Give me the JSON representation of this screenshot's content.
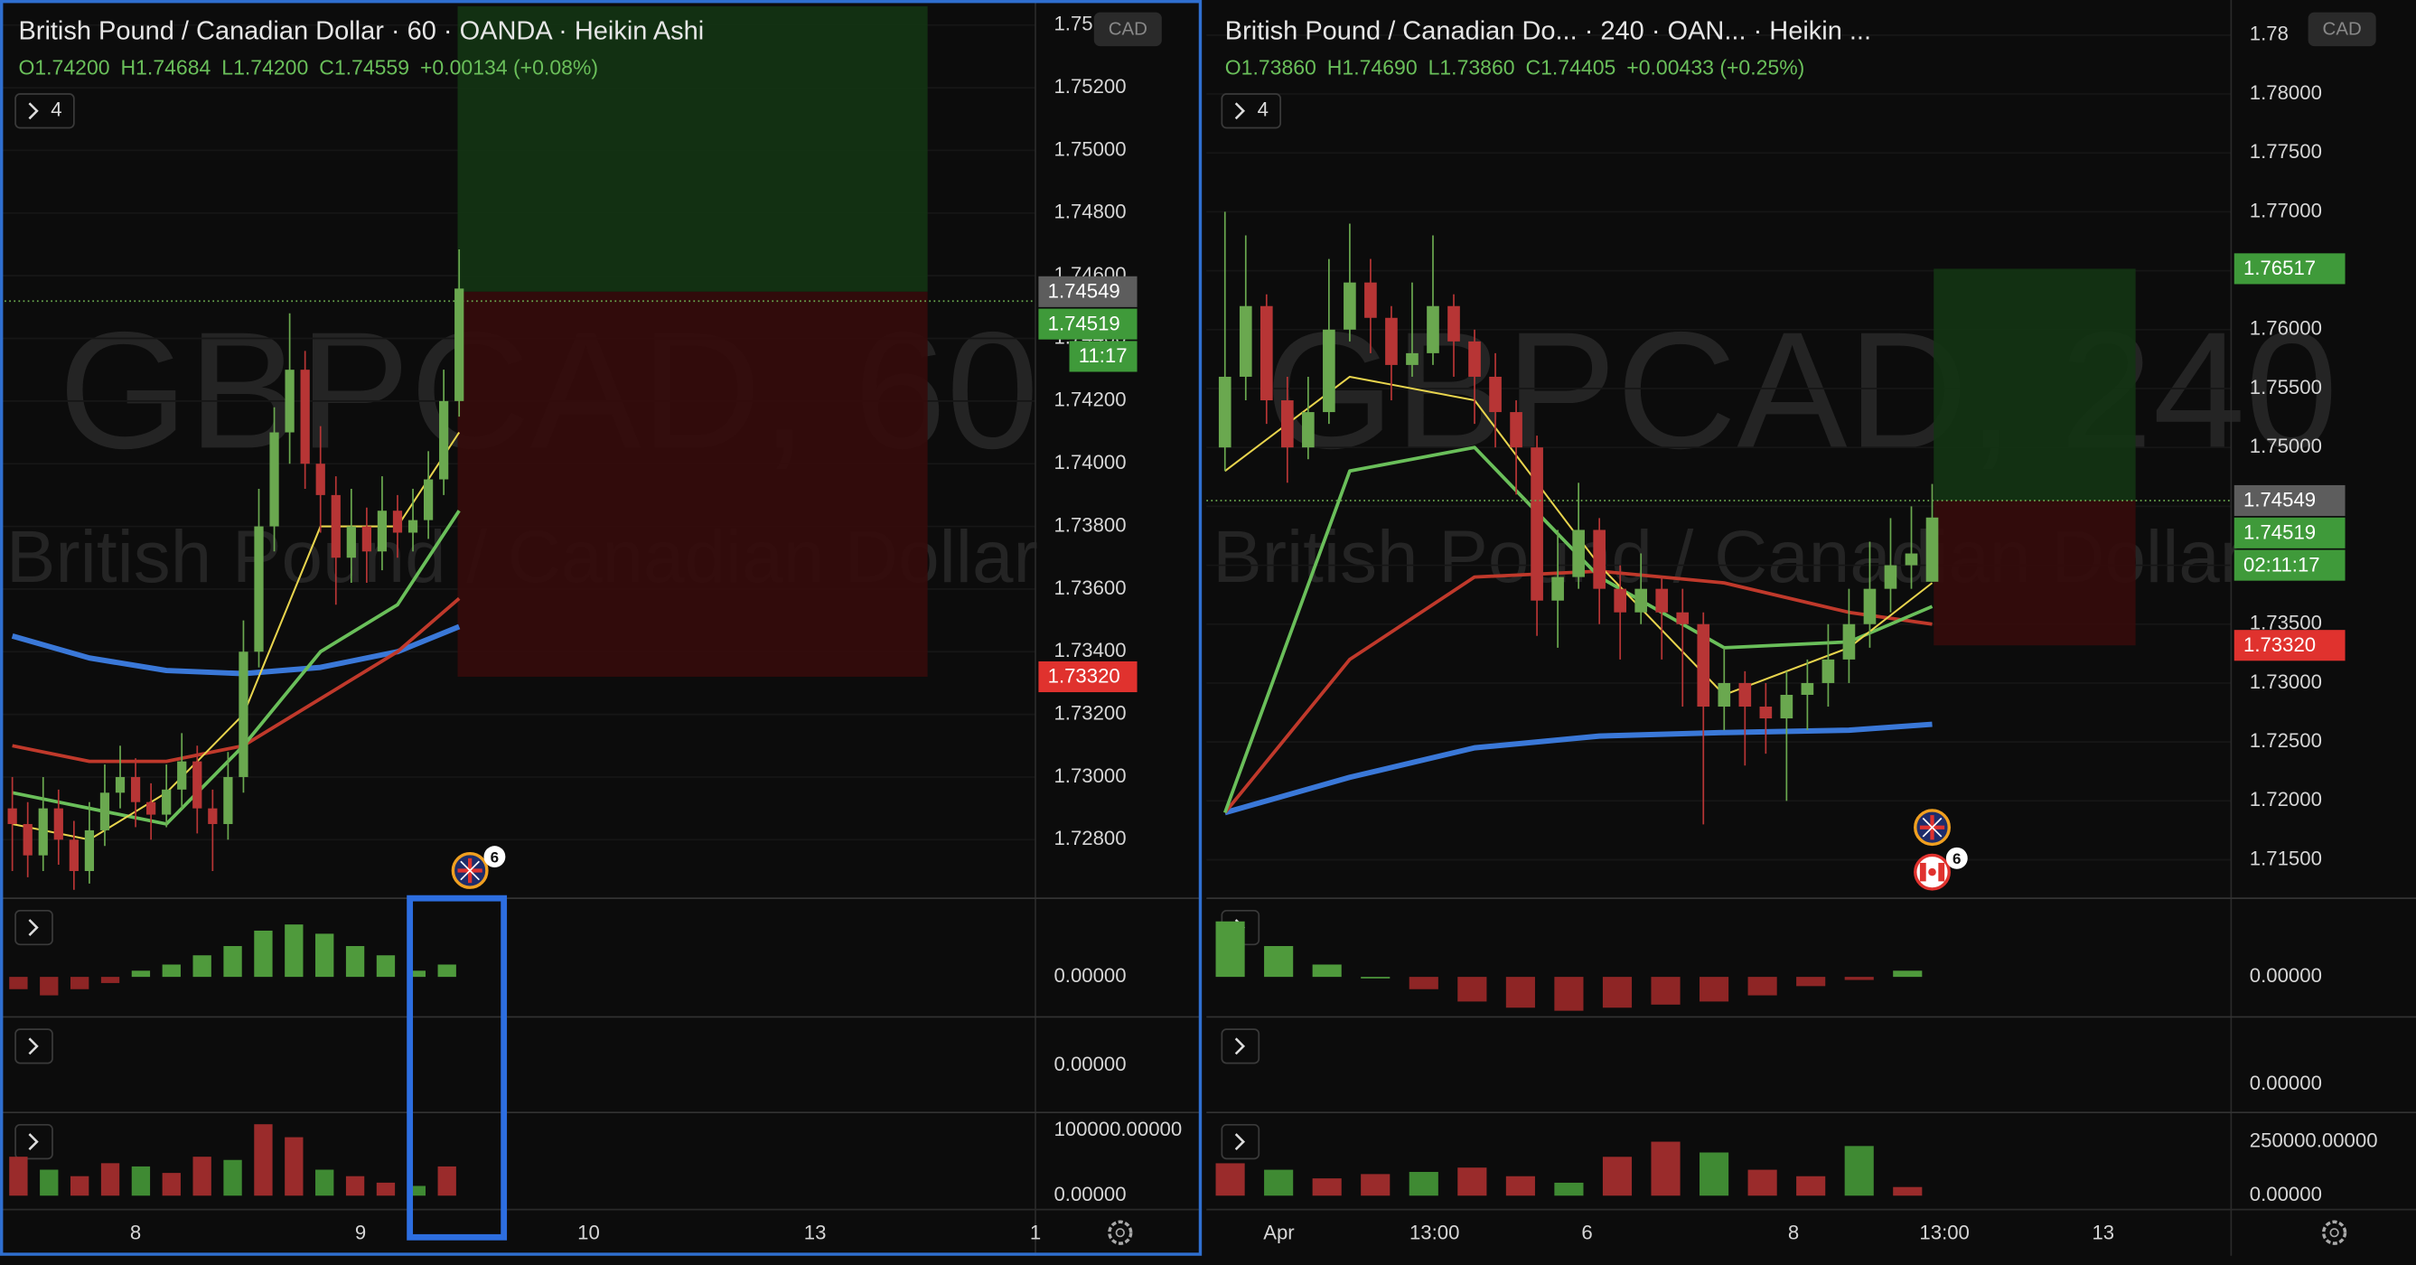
{
  "panes": [
    {
      "title": "British Pound / Canadian Dollar · 60 · OANDA · Heikin Ashi",
      "ohlc": [
        "O1.74200",
        "H1.74684",
        "L1.74200",
        "C1.74559",
        "+0.00134 (+0.08%)"
      ],
      "indicators_count": "4",
      "currency": "CAD",
      "watermark_symbol": "GBPCAD, 60",
      "watermark_name": "British Pound / Canadian Dollar",
      "ylim": [
        1.72613,
        1.7548
      ],
      "yticks": [
        {
          "value": 1.728,
          "label": "1.72800"
        },
        {
          "value": 1.73,
          "label": "1.73000"
        },
        {
          "value": 1.732,
          "label": "1.73200"
        },
        {
          "value": 1.734,
          "label": "1.73400"
        },
        {
          "value": 1.736,
          "label": "1.73600"
        },
        {
          "value": 1.738,
          "label": "1.73800"
        },
        {
          "value": 1.74,
          "label": "1.74000"
        },
        {
          "value": 1.742,
          "label": "1.74200"
        },
        {
          "value": 1.744,
          "label": "1.74400"
        },
        {
          "value": 1.746,
          "label": "1.74600"
        },
        {
          "value": 1.748,
          "label": "1.74800"
        },
        {
          "value": 1.75,
          "label": "1.75000"
        },
        {
          "value": 1.752,
          "label": "1.75200"
        },
        {
          "value": 1.754,
          "label": "1.75"
        }
      ],
      "price_labels": [
        {
          "value": 1.74549,
          "label": "1.74549",
          "color": "#5d5d5d"
        },
        {
          "value": 1.74519,
          "label": "1.74519",
          "color": "#3f9a3a",
          "countdown": "11:17"
        },
        {
          "value": 1.7332,
          "label": "1.73320",
          "color": "#e0322e"
        }
      ],
      "position": {
        "target": 1.7546,
        "entry": 1.74549,
        "stop": 1.7332
      },
      "time_labels": [
        "8",
        "9",
        "10",
        "13",
        "1"
      ],
      "event_badge": "6",
      "candles": [
        [
          1.729,
          1.73,
          1.727,
          1.7285
        ],
        [
          1.7285,
          1.7292,
          1.7268,
          1.7275
        ],
        [
          1.7275,
          1.73,
          1.727,
          1.729
        ],
        [
          1.729,
          1.7296,
          1.7272,
          1.728
        ],
        [
          1.728,
          1.7286,
          1.7264,
          1.727
        ],
        [
          1.727,
          1.7292,
          1.7266,
          1.7283
        ],
        [
          1.7283,
          1.7304,
          1.7278,
          1.7295
        ],
        [
          1.7295,
          1.731,
          1.729,
          1.73
        ],
        [
          1.73,
          1.7306,
          1.7284,
          1.7292
        ],
        [
          1.7292,
          1.7298,
          1.728,
          1.7288
        ],
        [
          1.7288,
          1.7304,
          1.7284,
          1.7296
        ],
        [
          1.7296,
          1.7314,
          1.729,
          1.7305
        ],
        [
          1.7305,
          1.731,
          1.7282,
          1.729
        ],
        [
          1.729,
          1.7296,
          1.727,
          1.7285
        ],
        [
          1.7285,
          1.7308,
          1.728,
          1.73
        ],
        [
          1.73,
          1.735,
          1.7295,
          1.734
        ],
        [
          1.734,
          1.7392,
          1.7335,
          1.738
        ],
        [
          1.738,
          1.7418,
          1.7372,
          1.741
        ],
        [
          1.741,
          1.7448,
          1.74,
          1.743
        ],
        [
          1.743,
          1.7436,
          1.7392,
          1.74
        ],
        [
          1.74,
          1.7412,
          1.7378,
          1.739
        ],
        [
          1.739,
          1.7396,
          1.7355,
          1.737
        ],
        [
          1.737,
          1.7392,
          1.7362,
          1.738
        ],
        [
          1.738,
          1.7386,
          1.7362,
          1.7372
        ],
        [
          1.7372,
          1.7396,
          1.7366,
          1.7385
        ],
        [
          1.7385,
          1.739,
          1.737,
          1.7378
        ],
        [
          1.7378,
          1.7392,
          1.7372,
          1.7382
        ],
        [
          1.7382,
          1.7404,
          1.7376,
          1.7395
        ],
        [
          1.7395,
          1.743,
          1.739,
          1.742
        ],
        [
          1.742,
          1.74684,
          1.7415,
          1.74559
        ]
      ],
      "moving_averages": [
        {
          "color": "#3a78d8",
          "x": [
            0,
            5,
            10,
            15,
            20,
            25,
            29
          ],
          "values": [
            1.7345,
            1.7338,
            1.7334,
            1.7333,
            1.7335,
            1.734,
            1.7348
          ]
        },
        {
          "color": "#c0392b",
          "x": [
            0,
            5,
            10,
            15,
            20,
            25,
            29
          ],
          "values": [
            1.731,
            1.7305,
            1.7305,
            1.731,
            1.7325,
            1.734,
            1.7357
          ]
        },
        {
          "color": "#6abf5a",
          "x": [
            0,
            5,
            10,
            15,
            20,
            25,
            29
          ],
          "values": [
            1.7295,
            1.729,
            1.7285,
            1.731,
            1.734,
            1.7355,
            1.7385
          ]
        },
        {
          "color": "#e8d44d",
          "x": [
            0,
            5,
            10,
            15,
            20,
            25,
            29
          ],
          "values": [
            1.7285,
            1.728,
            1.7295,
            1.732,
            1.738,
            1.738,
            1.741
          ]
        }
      ],
      "indicators": [
        {
          "ylim": [
            -0.6,
            1.2
          ],
          "yticks": [
            {
              "value": 0,
              "label": "0.00000"
            }
          ],
          "values": [
            -0.2,
            -0.3,
            -0.2,
            -0.1,
            0.1,
            0.2,
            0.35,
            0.5,
            0.75,
            0.85,
            0.7,
            0.5,
            0.35,
            0.1,
            0.2
          ]
        },
        {
          "ylim": [
            -1,
            1
          ],
          "yticks": [
            {
              "value": 0,
              "label": "0.00000"
            }
          ]
        },
        {
          "ylim": [
            0,
            121000
          ],
          "yticks": [
            {
              "value": 100000,
              "label": "100000.00000"
            },
            {
              "value": 0,
              "label": "0.00000"
            }
          ],
          "values": [
            60000,
            40000,
            30000,
            50000,
            45000,
            35000,
            60000,
            55000,
            110000,
            90000,
            40000,
            30000,
            20000,
            15000,
            45000
          ]
        }
      ]
    },
    {
      "title": "British Pound / Canadian Do... · 240 · OAN... · Heikin ...",
      "ohlc": [
        "O1.73860",
        "H1.74690",
        "L1.73860",
        "C1.74405",
        "+0.00433 (+0.25%)"
      ],
      "indicators_count": "4",
      "currency": "CAD",
      "watermark_symbol": "GBPCAD, 240",
      "watermark_name": "British Pound / Canadian Dollar",
      "ylim": [
        1.71173,
        1.78798
      ],
      "yticks": [
        {
          "value": 1.715,
          "label": "1.71500"
        },
        {
          "value": 1.72,
          "label": "1.72000"
        },
        {
          "value": 1.725,
          "label": "1.72500"
        },
        {
          "value": 1.73,
          "label": "1.73000"
        },
        {
          "value": 1.735,
          "label": "1.73500"
        },
        {
          "value": 1.74,
          "label": "1.74000"
        },
        {
          "value": 1.745,
          "label": "1.74500"
        },
        {
          "value": 1.75,
          "label": "1.75000"
        },
        {
          "value": 1.755,
          "label": "1.75500"
        },
        {
          "value": 1.76,
          "label": "1.76000"
        },
        {
          "value": 1.765,
          "label": "1.76500"
        },
        {
          "value": 1.77,
          "label": "1.77000"
        },
        {
          "value": 1.775,
          "label": "1.77500"
        },
        {
          "value": 1.78,
          "label": "1.78000"
        },
        {
          "value": 1.785,
          "label": "1.78"
        }
      ],
      "price_labels": [
        {
          "value": 1.76517,
          "label": "1.76517",
          "color": "#3f9a3a"
        },
        {
          "value": 1.74549,
          "label": "1.74549",
          "color": "#5d5d5d"
        },
        {
          "value": 1.74519,
          "label": "1.74519",
          "color": "#3f9a3a",
          "countdown": "02:11:17"
        },
        {
          "value": 1.7332,
          "label": "1.73320",
          "color": "#e0322e"
        }
      ],
      "position": {
        "target": 1.76517,
        "entry": 1.74549,
        "stop": 1.7332
      },
      "time_labels": [
        "Apr",
        "13:00",
        "6",
        "8",
        "13:00",
        "13"
      ],
      "event_badge": "6",
      "candles": [
        [
          1.75,
          1.77,
          1.748,
          1.756
        ],
        [
          1.756,
          1.768,
          1.754,
          1.762
        ],
        [
          1.762,
          1.763,
          1.752,
          1.754
        ],
        [
          1.754,
          1.756,
          1.747,
          1.75
        ],
        [
          1.75,
          1.756,
          1.749,
          1.753
        ],
        [
          1.753,
          1.766,
          1.752,
          1.76
        ],
        [
          1.76,
          1.769,
          1.759,
          1.764
        ],
        [
          1.764,
          1.766,
          1.758,
          1.761
        ],
        [
          1.761,
          1.762,
          1.754,
          1.757
        ],
        [
          1.757,
          1.764,
          1.756,
          1.758
        ],
        [
          1.758,
          1.768,
          1.757,
          1.762
        ],
        [
          1.762,
          1.763,
          1.756,
          1.759
        ],
        [
          1.759,
          1.76,
          1.752,
          1.756
        ],
        [
          1.756,
          1.758,
          1.75,
          1.753
        ],
        [
          1.753,
          1.754,
          1.746,
          1.75
        ],
        [
          1.75,
          1.751,
          1.734,
          1.737
        ],
        [
          1.737,
          1.743,
          1.733,
          1.739
        ],
        [
          1.739,
          1.747,
          1.738,
          1.743
        ],
        [
          1.743,
          1.744,
          1.735,
          1.738
        ],
        [
          1.738,
          1.74,
          1.732,
          1.736
        ],
        [
          1.736,
          1.741,
          1.735,
          1.738
        ],
        [
          1.738,
          1.739,
          1.732,
          1.736
        ],
        [
          1.736,
          1.738,
          1.728,
          1.735
        ],
        [
          1.735,
          1.736,
          1.718,
          1.728
        ],
        [
          1.728,
          1.733,
          1.726,
          1.73
        ],
        [
          1.73,
          1.731,
          1.723,
          1.728
        ],
        [
          1.728,
          1.73,
          1.724,
          1.727
        ],
        [
          1.727,
          1.731,
          1.72,
          1.729
        ],
        [
          1.729,
          1.732,
          1.726,
          1.73
        ],
        [
          1.73,
          1.735,
          1.728,
          1.732
        ],
        [
          1.732,
          1.738,
          1.73,
          1.735
        ],
        [
          1.735,
          1.742,
          1.733,
          1.738
        ],
        [
          1.738,
          1.744,
          1.736,
          1.74
        ],
        [
          1.74,
          1.745,
          1.738,
          1.741
        ],
        [
          1.7386,
          1.7469,
          1.7386,
          1.74405
        ]
      ],
      "moving_averages": [
        {
          "color": "#3a78d8",
          "x": [
            0,
            6,
            12,
            18,
            24,
            30,
            34
          ],
          "values": [
            1.719,
            1.722,
            1.7245,
            1.7255,
            1.7258,
            1.726,
            1.7265
          ]
        },
        {
          "color": "#c0392b",
          "x": [
            0,
            6,
            12,
            18,
            24,
            30,
            34
          ],
          "values": [
            1.719,
            1.732,
            1.739,
            1.7395,
            1.7385,
            1.736,
            1.735
          ]
        },
        {
          "color": "#6abf5a",
          "x": [
            0,
            6,
            12,
            18,
            24,
            30,
            34
          ],
          "values": [
            1.719,
            1.748,
            1.75,
            1.739,
            1.733,
            1.7335,
            1.7365
          ]
        },
        {
          "color": "#e8d44d",
          "x": [
            0,
            6,
            12,
            18,
            24,
            30,
            34
          ],
          "values": [
            1.748,
            1.756,
            1.754,
            1.74,
            1.729,
            1.733,
            1.7385
          ]
        }
      ],
      "indicators": [
        {
          "ylim": [
            -0.6,
            1.2
          ],
          "yticks": [
            {
              "value": 0,
              "label": "0.00000"
            }
          ],
          "values": [
            0.9,
            0.5,
            0.2,
            0,
            -0.2,
            -0.4,
            -0.5,
            -0.55,
            -0.5,
            -0.45,
            -0.4,
            -0.3,
            -0.15,
            -0.05,
            0.1
          ]
        },
        {
          "ylim": [
            -0.4,
            1
          ],
          "yticks": [
            {
              "value": 0,
              "label": "0.00000"
            }
          ]
        },
        {
          "ylim": [
            0,
            364000
          ],
          "yticks": [
            {
              "value": 250000,
              "label": "250000.00000"
            },
            {
              "value": 0,
              "label": "0.00000"
            }
          ],
          "values": [
            150000,
            120000,
            80000,
            100000,
            110000,
            130000,
            90000,
            60000,
            180000,
            250000,
            200000,
            120000,
            90000,
            230000,
            40000
          ]
        }
      ]
    }
  ]
}
